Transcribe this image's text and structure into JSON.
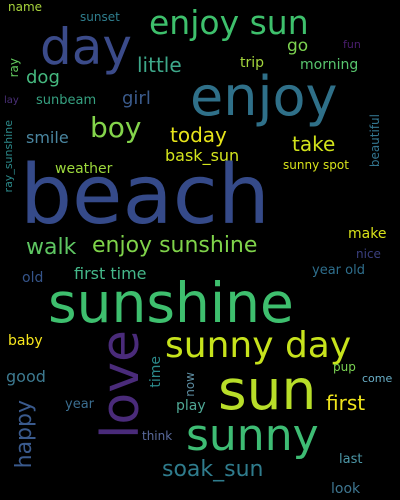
{
  "words": [
    {
      "text": "name",
      "color": "#a8d43c"
    },
    {
      "text": "sunset",
      "color": "#2f7e8e"
    },
    {
      "text": "enjoy sun",
      "color": "#3ec06c"
    },
    {
      "text": "day",
      "color": "#3b4b8a"
    },
    {
      "text": "fun",
      "color": "#4a1d6e"
    },
    {
      "text": "ray",
      "color": "#63cb5f"
    },
    {
      "text": "enjoy",
      "color": "#2f7089"
    },
    {
      "text": "go",
      "color": "#7cd250"
    },
    {
      "text": "little",
      "color": "#3ea88a"
    },
    {
      "text": "trip",
      "color": "#a4d63c"
    },
    {
      "text": "dog",
      "color": "#45b97f"
    },
    {
      "text": "morning",
      "color": "#58c56e"
    },
    {
      "text": "lay",
      "color": "#4a2f78"
    },
    {
      "text": "sunbeam",
      "color": "#36a181"
    },
    {
      "text": "girl",
      "color": "#3b5b8c"
    },
    {
      "text": "boy",
      "color": "#84d44b"
    },
    {
      "text": "today",
      "color": "#e8e51a"
    },
    {
      "text": "take",
      "color": "#d1e21b"
    },
    {
      "text": "ray_sunshine",
      "color": "#2c8a8b"
    },
    {
      "text": "smile",
      "color": "#4a86a0"
    },
    {
      "text": "beautiful",
      "color": "#33758f"
    },
    {
      "text": "bask_sun",
      "color": "#d4e51d"
    },
    {
      "text": "weather",
      "color": "#9dd93c"
    },
    {
      "text": "sunny spot",
      "color": "#d7e21a"
    },
    {
      "text": "beach",
      "color": "#354a89"
    },
    {
      "text": "walk",
      "color": "#5ec662"
    },
    {
      "text": "enjoy sunshine",
      "color": "#7fd34a"
    },
    {
      "text": "make",
      "color": "#d8e219"
    },
    {
      "text": "nice",
      "color": "#3a3f7e"
    },
    {
      "text": "old",
      "color": "#35548a"
    },
    {
      "text": "first time",
      "color": "#45b88a"
    },
    {
      "text": "year old",
      "color": "#2e6e8c"
    },
    {
      "text": "sunshine",
      "color": "#3ebf6e"
    },
    {
      "text": "love",
      "color": "#4a2b7a"
    },
    {
      "text": "sunny day",
      "color": "#c7e31c"
    },
    {
      "text": "baby",
      "color": "#f6e61d"
    },
    {
      "text": "good",
      "color": "#3d7a90"
    },
    {
      "text": "sun",
      "color": "#b8de29"
    },
    {
      "text": "time",
      "color": "#2c8a8b"
    },
    {
      "text": "pup",
      "color": "#7ad252"
    },
    {
      "text": "now",
      "color": "#5c8ca0"
    },
    {
      "text": "happy",
      "color": "#3a5a8d"
    },
    {
      "text": "first",
      "color": "#f0e51c"
    },
    {
      "text": "year",
      "color": "#3b6e90"
    },
    {
      "text": "play",
      "color": "#4fa895"
    },
    {
      "text": "come",
      "color": "#6ab0c9"
    },
    {
      "text": "think",
      "color": "#5a6a9c"
    },
    {
      "text": "sunny",
      "color": "#3ebc74"
    },
    {
      "text": "soak_sun",
      "color": "#2f7c8d"
    },
    {
      "text": "last",
      "color": "#4d98a8"
    },
    {
      "text": "look",
      "color": "#3e7690"
    }
  ]
}
